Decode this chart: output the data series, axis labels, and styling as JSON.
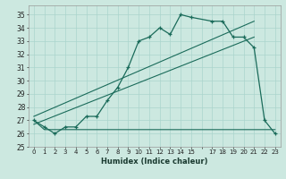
{
  "xlabel": "Humidex (Indice chaleur)",
  "bg_color": "#cce8e0",
  "line_color": "#1a6b5a",
  "grid_color": "#aad4cc",
  "xlim": [
    -0.5,
    23.5
  ],
  "ylim": [
    25,
    35.7
  ],
  "yticks": [
    25,
    26,
    27,
    28,
    29,
    30,
    31,
    32,
    33,
    34,
    35
  ],
  "main_x": [
    0,
    1,
    2,
    3,
    4,
    5,
    6,
    7,
    8,
    9,
    10,
    11,
    12,
    13,
    14,
    15,
    17,
    18,
    19,
    20,
    21,
    22,
    23
  ],
  "main_y": [
    27.0,
    26.5,
    26.0,
    26.5,
    26.5,
    27.3,
    27.3,
    28.5,
    29.5,
    31.0,
    33.0,
    33.3,
    34.0,
    33.5,
    35.0,
    34.8,
    34.5,
    34.5,
    33.3,
    33.3,
    32.5,
    27.0,
    26.0
  ],
  "flat_x": [
    0,
    1,
    2,
    3,
    4,
    5,
    6,
    7,
    8,
    9,
    10,
    11,
    12,
    13,
    14,
    15,
    16,
    17,
    18,
    19,
    20,
    21,
    22,
    23
  ],
  "flat_y": [
    27.0,
    26.3,
    26.3,
    26.3,
    26.3,
    26.3,
    26.3,
    26.3,
    26.3,
    26.3,
    26.3,
    26.3,
    26.3,
    26.3,
    26.3,
    26.3,
    26.3,
    26.3,
    26.3,
    26.3,
    26.3,
    26.3,
    26.3,
    26.3
  ],
  "trend1_x": [
    0,
    21
  ],
  "trend1_y": [
    26.7,
    33.3
  ],
  "trend2_x": [
    0,
    21
  ],
  "trend2_y": [
    27.3,
    34.5
  ]
}
